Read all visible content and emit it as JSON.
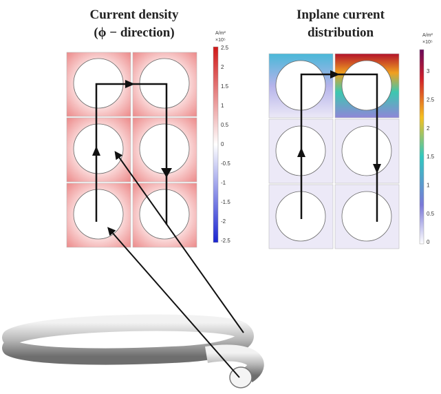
{
  "left_panel": {
    "title_lines": [
      "Current density",
      "(ϕ − direction)"
    ],
    "colorbar": {
      "unit": "A/m²",
      "scale": "×10⁵",
      "ticks": [
        "2.5",
        "2",
        "1.5",
        "1",
        "0.5",
        "0",
        "-0.5",
        "-1",
        "-1.5",
        "-2",
        "-2.5"
      ]
    }
  },
  "right_panel": {
    "title_lines": [
      "Inplane current",
      "distribution"
    ],
    "colorbar": {
      "unit": "A/m²",
      "scale": "×10⁵",
      "ticks": [
        "3",
        "2.5",
        "2",
        "1.5",
        "1",
        "0.5",
        "0"
      ]
    }
  }
}
